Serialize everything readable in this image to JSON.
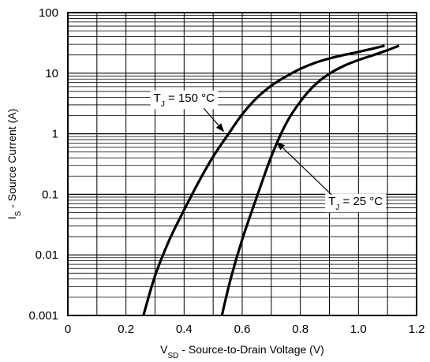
{
  "chart_data": {
    "type": "line",
    "xlabel": {
      "main": "V",
      "sub": "SD",
      "rest": " - Source-to-Drain Voltage (V)"
    },
    "ylabel": {
      "main": "I",
      "sub": "S",
      "rest": " - Source Current (A)"
    },
    "xlim": [
      0,
      1.2
    ],
    "ylim": [
      0.001,
      100
    ],
    "y_scale": "log",
    "grid": true,
    "x_ticks": [
      "0",
      "0.2",
      "0.4",
      "0.6",
      "0.8",
      "1.0",
      "1.2"
    ],
    "y_ticks": [
      "0.001",
      "0.01",
      "0.1",
      "1",
      "10",
      "100"
    ],
    "series": [
      {
        "label": {
          "main": "T",
          "sub": "J",
          "rest": " = 150 °C"
        },
        "x": [
          0.26,
          0.3,
          0.35,
          0.4,
          0.45,
          0.5,
          0.55,
          0.6,
          0.65,
          0.7,
          0.75,
          0.8,
          0.85,
          0.9,
          0.95,
          1.0,
          1.05,
          1.09
        ],
        "y": [
          0.001,
          0.0045,
          0.018,
          0.055,
          0.16,
          0.42,
          0.95,
          2.1,
          3.9,
          6.2,
          8.8,
          11.8,
          14.8,
          17.5,
          20.0,
          22.5,
          25.5,
          28.5
        ]
      },
      {
        "label": {
          "main": "T",
          "sub": "J",
          "rest": " = 25 °C"
        },
        "x": [
          0.53,
          0.56,
          0.6,
          0.65,
          0.7,
          0.75,
          0.8,
          0.85,
          0.9,
          0.95,
          1.0,
          1.05,
          1.1,
          1.14
        ],
        "y": [
          0.001,
          0.004,
          0.018,
          0.09,
          0.42,
          1.45,
          3.4,
          6.4,
          9.8,
          13.2,
          16.5,
          19.8,
          24.0,
          28.5
        ]
      }
    ],
    "annotations": [
      {
        "series": 0,
        "label_at": [
          0.4,
          3.4
        ],
        "arrow_to": [
          0.536,
          1.1
        ]
      },
      {
        "series": 1,
        "label_at": [
          0.99,
          0.067
        ],
        "arrow_to": [
          0.72,
          0.72
        ]
      }
    ]
  }
}
